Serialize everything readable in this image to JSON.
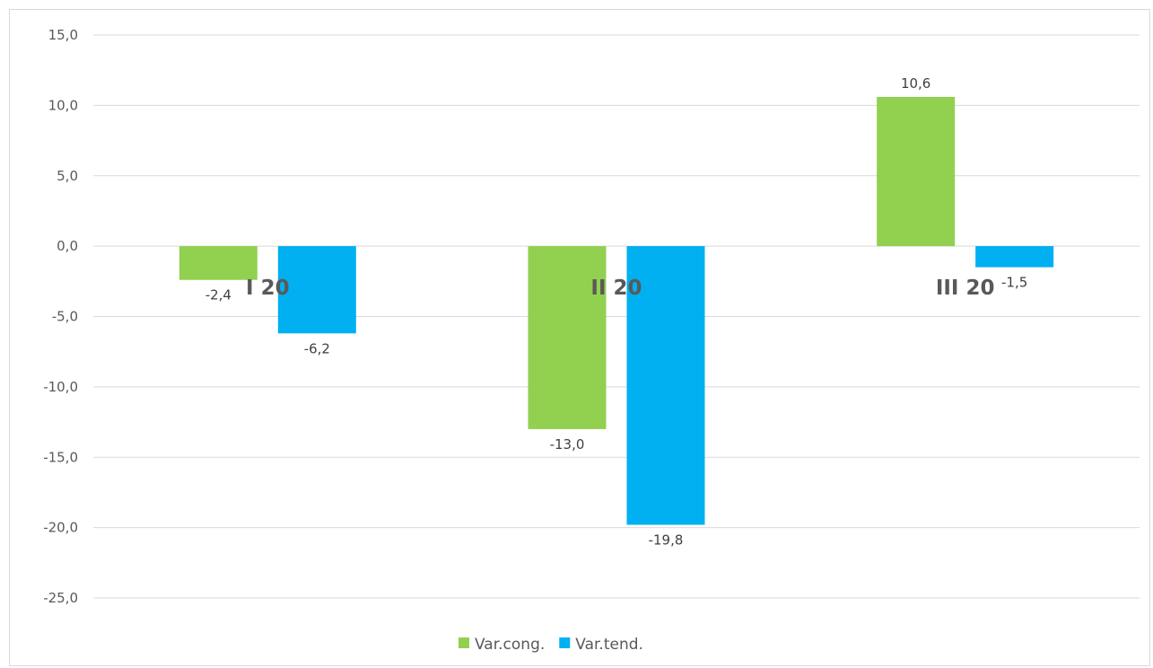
{
  "chart_data": {
    "type": "bar",
    "categories": [
      "I 20",
      "II 20",
      "III 20"
    ],
    "series": [
      {
        "name": "Var.cong.",
        "color": "#92d050",
        "values": [
          -2.4,
          -13.0,
          10.6
        ],
        "labels": [
          "-2,4",
          "-13,0",
          "10,6"
        ]
      },
      {
        "name": "Var.tend.",
        "color": "#00b0f0",
        "values": [
          -6.2,
          -19.8,
          -1.5
        ],
        "labels": [
          "-6,2",
          "-19,8",
          "-1,5"
        ]
      }
    ],
    "y_ticks": [
      15,
      10,
      5,
      0,
      -5,
      -10,
      -15,
      -20,
      -25
    ],
    "y_tick_labels": [
      "15,0",
      "10,0",
      "5,0",
      "0,0",
      "-5,0",
      "-10,0",
      "-15,0",
      "-20,0",
      "-25,0"
    ],
    "ylim": [
      -25,
      15
    ],
    "grid": true,
    "legend_position": "bottom",
    "title": "",
    "xlabel": "",
    "ylabel": ""
  }
}
